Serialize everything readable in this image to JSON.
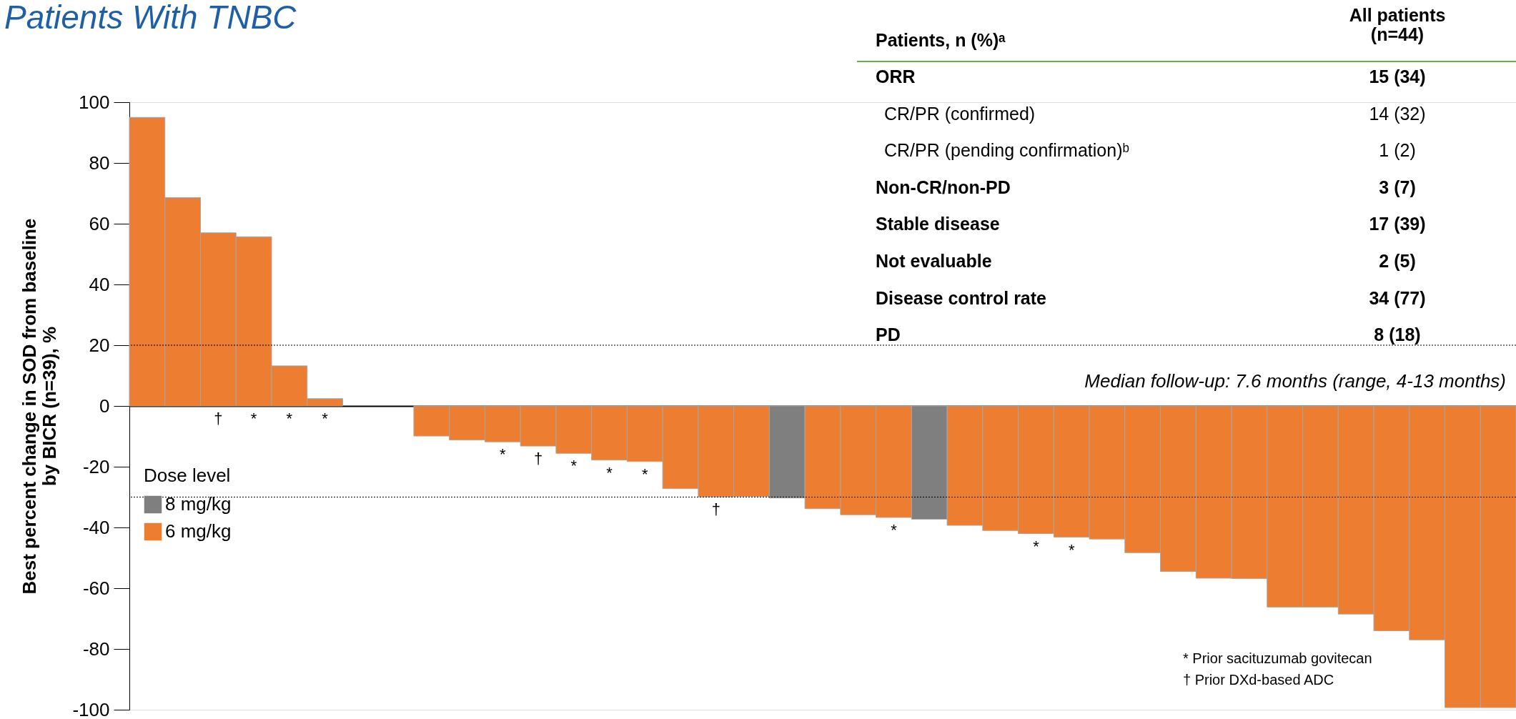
{
  "chart_data": [
    {
      "type": "bar",
      "title": "Patients With TNBC",
      "ylabel": "Best percent change in SOD from baseline\nby BICR (n=39), %",
      "categories": [
        null,
        null,
        null,
        null,
        null,
        null,
        null,
        null,
        null,
        null,
        null,
        null,
        null,
        null,
        null,
        null,
        null,
        null,
        null,
        null,
        null,
        null,
        null,
        null,
        null,
        null,
        null,
        null,
        null,
        null,
        null,
        null,
        null,
        null,
        null,
        null,
        null,
        null,
        null
      ],
      "series": [
        {
          "name": "8 mg/kg",
          "color": "#7f7f7f",
          "values": [
            null,
            null,
            null,
            null,
            null,
            null,
            null,
            null,
            null,
            null,
            null,
            null,
            null,
            null,
            null,
            null,
            null,
            null,
            -30.3,
            null,
            null,
            null,
            -37.3,
            null,
            null,
            null,
            null,
            null,
            null,
            null,
            null,
            null,
            null,
            null,
            null,
            null,
            null,
            null,
            null
          ]
        },
        {
          "name": "6 mg/kg",
          "color": "#ed7d31",
          "values": [
            95,
            68.6,
            57,
            55.7,
            13.2,
            2.4,
            null,
            null,
            -9.9,
            -11.2,
            -11.8,
            -13.2,
            -15.6,
            -17.8,
            -18.3,
            -27.2,
            -29.9,
            -29.8,
            null,
            -33.8,
            -35.8,
            -36.7,
            null,
            -39.3,
            -41,
            -42,
            -43.2,
            -43.8,
            -48.3,
            -54.5,
            -56.7,
            -56.8,
            -66.2,
            -66.2,
            -68.5,
            -74,
            -77,
            -99.3,
            -99.3
          ],
          "value_labels": [
            null,
            null,
            "†",
            "*",
            "*",
            "*",
            null,
            null,
            null,
            null,
            "*",
            "†",
            "*",
            "*",
            "*",
            null,
            "†",
            null,
            null,
            null,
            null,
            "*",
            null,
            null,
            null,
            "*",
            "*",
            null,
            null,
            null,
            null,
            null,
            null,
            null,
            null,
            null,
            null,
            null,
            null
          ]
        }
      ],
      "ylim": [
        -100,
        100
      ],
      "yticks": [
        -100,
        -80,
        -60,
        -40,
        -20,
        0,
        20,
        40,
        60,
        80,
        100
      ],
      "ref_lines": [
        {
          "axis": "y",
          "value": 20,
          "line_style": "dotted"
        },
        {
          "axis": "y",
          "value": -30,
          "line_style": "dotted"
        }
      ],
      "legend_title": "Dose level",
      "legend": "left",
      "grid": false,
      "tick_labels": "y",
      "annotations": [
        "Median follow-up: 7.6 months (range, 4-13 months)",
        "* Prior sacituzumab govitecan",
        "† Prior DXd-based ADC"
      ]
    },
    {
      "type": "other",
      "ylabel": "Patients, n (%)ᵃ",
      "xlabel": "All patients\n(n=44)",
      "categories": [
        "ORR",
        " CR/PR (confirmed)",
        " CR/PR (pending confirmation)ᵇ",
        "Non-CR/non-PD",
        "Stable disease",
        "Not evaluable",
        "Disease control rate",
        "PD"
      ],
      "value_labels": [
        "15 (34)",
        "14 (32)",
        "1 (2)",
        "3 (7)",
        "17 (39)",
        "2 (5)",
        "34 (77)",
        "8 (18)"
      ]
    }
  ]
}
